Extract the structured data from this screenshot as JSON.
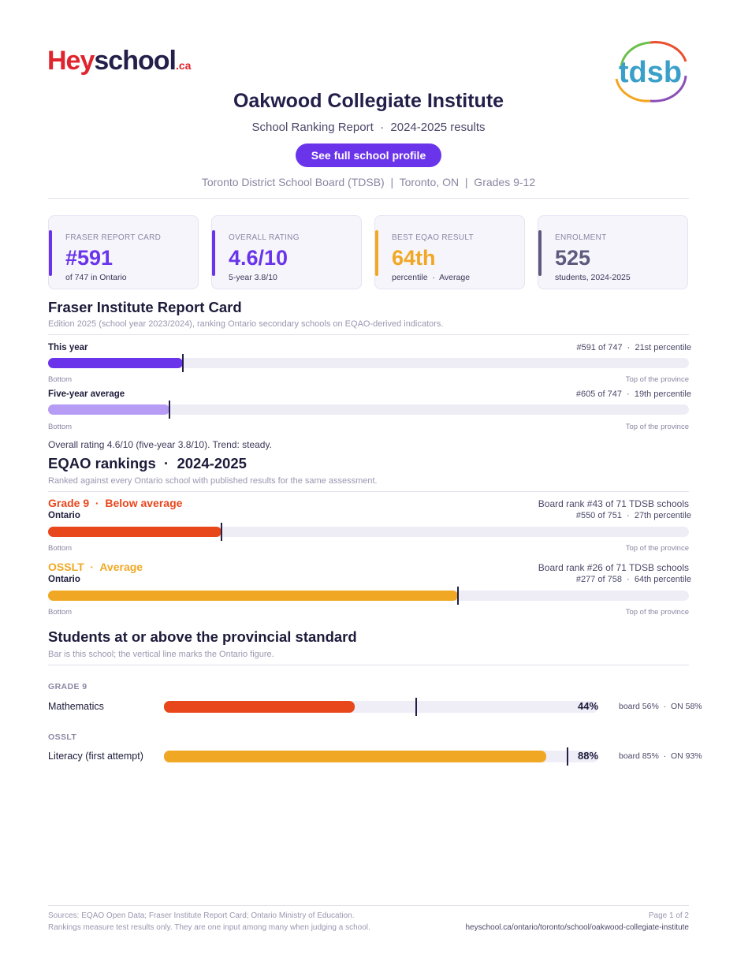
{
  "brand": {
    "hey": "Hey",
    "school": "school",
    "ca": ".ca",
    "board_logo": "tdsb"
  },
  "header": {
    "title": "Oakwood Collegiate Institute",
    "subtitle": "School Ranking Report  ·  2024-2025 results",
    "profile_button": "See full school profile",
    "meta": "Toronto District School Board (TDSB)  |  Toronto, ON  |  Grades 9-12"
  },
  "cards": [
    {
      "label": "FRASER REPORT CARD",
      "value": "#591",
      "sub": "of 747 in Ontario",
      "color": "#6a35ea"
    },
    {
      "label": "OVERALL RATING",
      "value": "4.6/10",
      "sub": "5-year 3.8/10",
      "color": "#6a35ea"
    },
    {
      "label": "BEST EQAO RESULT",
      "value": "64th",
      "sub": "percentile  ·  Average",
      "color": "#f0a824"
    },
    {
      "label": "ENROLMENT",
      "value": "525",
      "sub": "students, 2024-2025",
      "color": "#5d5a7e"
    }
  ],
  "fraser": {
    "heading": "Fraser Institute Report Card",
    "desc": "Edition 2025 (school year 2023/2024), ranking Ontario secondary schools on EQAO-derived indicators.",
    "rows": [
      {
        "label": "This year",
        "right": "#591 of 747  ·  21st percentile",
        "percentile": 21,
        "color": "#6a35ea"
      },
      {
        "label": "Five-year average",
        "right": "#605 of 747  ·  19th percentile",
        "percentile": 19,
        "color": "#b79cf5"
      }
    ],
    "axis_left": "Bottom",
    "axis_right": "Top of the province",
    "note": "Overall rating 4.6/10 (five-year 3.8/10). Trend: steady."
  },
  "eqao": {
    "heading": "EQAO rankings  ·  2024-2025",
    "desc": "Ranked against every Ontario school with published results for the same assessment.",
    "rows": [
      {
        "head": "Grade 9  ·  Below average",
        "board": "Board rank #43 of 71 TDSB schools",
        "label": "Ontario",
        "right": "#550 of 751  ·  27th percentile",
        "percentile": 27,
        "color": "#e8471c"
      },
      {
        "head": "OSSLT  ·  Average",
        "board": "Board rank #26 of 71 TDSB schools",
        "label": "Ontario",
        "right": "#277 of 758  ·  64th percentile",
        "percentile": 64,
        "color": "#f0a824"
      }
    ],
    "axis_left": "Bottom",
    "axis_right": "Top of the province"
  },
  "standard": {
    "heading": "Students at or above the provincial standard",
    "desc": "Bar is this school; the vertical line marks the Ontario figure.",
    "groups": [
      {
        "label": "GRADE 9",
        "subject": "Mathematics",
        "school": 44,
        "ontario": 58,
        "pct": "44%",
        "cmp": "board 56%  ·  ON 58%",
        "color": "#e8471c"
      },
      {
        "label": "OSSLT",
        "subject": "Literacy (first attempt)",
        "school": 88,
        "ontario": 93,
        "pct": "88%",
        "cmp": "board 85%  ·  ON 93%",
        "color": "#f0a824"
      }
    ]
  },
  "footer": {
    "sources": "Sources: EQAO Open Data; Fraser Institute Report Card; Ontario Ministry of Education.",
    "disclaimer": "Rankings measure test results only. They are one input among many when judging a school.",
    "page": "Page 1 of 2",
    "url": "heyschool.ca/ontario/toronto/school/oakwood-collegiate-institute"
  }
}
